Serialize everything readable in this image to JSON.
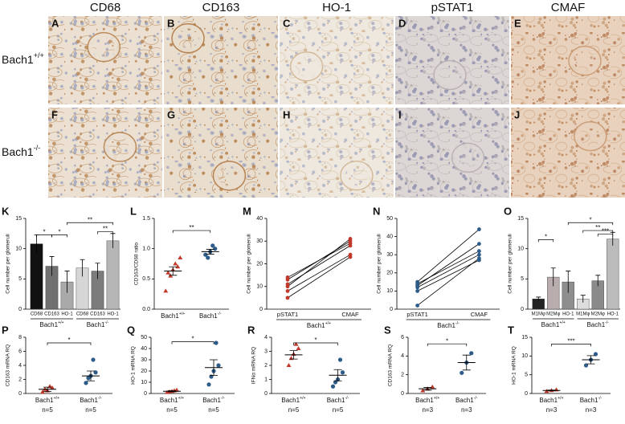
{
  "photos": {
    "columns": [
      "CD68",
      "CD163",
      "HO-1",
      "pSTAT1",
      "CMAF"
    ],
    "rows": [
      {
        "label": "Bach1",
        "sup": "+/+",
        "panels": [
          "A",
          "B",
          "C",
          "D",
          "E"
        ]
      },
      {
        "label": "Bach1",
        "sup": "-/-",
        "panels": [
          "F",
          "G",
          "H",
          "I",
          "J"
        ]
      }
    ]
  },
  "chart_data": [
    {
      "panel": "K",
      "type": "bar",
      "ylabel": "Cell number per glomeruli",
      "ylim": [
        0,
        15
      ],
      "yticks": [
        0,
        5,
        10,
        15
      ],
      "groups": [
        {
          "label": "Bach1",
          "sup": "+/+",
          "categories": [
            "CD68",
            "CD163",
            "HO-1"
          ],
          "values": [
            10.8,
            7.1,
            4.5
          ],
          "errors": [
            1.5,
            1.6,
            1.8
          ],
          "colors": [
            "#111111",
            "#707070",
            "#a9a9a9"
          ]
        },
        {
          "label": "Bach1",
          "sup": "-/-",
          "categories": [
            "CD68",
            "CD163",
            "HO-1"
          ],
          "values": [
            6.8,
            6.3,
            11.3
          ],
          "errors": [
            1.4,
            1.3,
            1.2
          ],
          "colors": [
            "#d6d6d6",
            "#7c7c7c",
            "#b6b6b6"
          ]
        }
      ],
      "significance": [
        "*",
        "*",
        "**",
        "**"
      ]
    },
    {
      "panel": "L",
      "type": "scatter",
      "ylabel": "CD163/CD68 ratio",
      "ylim": [
        0,
        1.5
      ],
      "yticks": [
        {
          "value": 0,
          "label": "0.0"
        },
        0.5,
        {
          "value": 1,
          "label": "1.0"
        },
        1.5
      ],
      "groups": [
        {
          "label": "Bach1",
          "sup": "+/+",
          "color": "#c0392b",
          "points": [
            0.65,
            0.6,
            0.7,
            0.55,
            0.75,
            0.3,
            0.85
          ],
          "mean": 0.63,
          "sem": 0.07
        },
        {
          "label": "Bach1",
          "sup": "-/-",
          "color": "#2e5c8a",
          "points": [
            0.95,
            0.9,
            1.0,
            0.85,
            1.05
          ],
          "mean": 0.95,
          "sem": 0.04
        }
      ],
      "significance": [
        "**"
      ]
    },
    {
      "panel": "M",
      "type": "paired",
      "ylabel": "Cell number per glomeruli",
      "ylim": [
        0,
        40
      ],
      "yticks": [
        0,
        10,
        20,
        30,
        40
      ],
      "categories": [
        "pSTAT1",
        "CMAF"
      ],
      "color": "#c0392b",
      "group": {
        "label": "Bach1",
        "sup": "+/+"
      },
      "pairs": [
        [
          13,
          30
        ],
        [
          14,
          29
        ],
        [
          10,
          31
        ],
        [
          8,
          24
        ],
        [
          11,
          28
        ],
        [
          5,
          23
        ]
      ]
    },
    {
      "panel": "N",
      "type": "paired",
      "ylabel": "Cell number per glomeruli",
      "ylim": [
        0,
        50
      ],
      "yticks": [
        0,
        10,
        20,
        30,
        40,
        50
      ],
      "categories": [
        "pSTAT1",
        "CMAF"
      ],
      "color": "#2e5c8a",
      "group": {
        "label": "Bach1",
        "sup": "-/-"
      },
      "pairs": [
        [
          14,
          32
        ],
        [
          13,
          36
        ],
        [
          12,
          30
        ],
        [
          15,
          44
        ],
        [
          2,
          28
        ],
        [
          10,
          27
        ]
      ]
    },
    {
      "panel": "O",
      "type": "bar",
      "ylabel": "Cell number per glomeruli",
      "ylim": [
        0,
        15
      ],
      "yticks": [
        0,
        5,
        10,
        15
      ],
      "groups": [
        {
          "label": "Bach1",
          "sup": "+/+",
          "categories": [
            "M1Mφ",
            "M2Mφ",
            "HO-1"
          ],
          "values": [
            1.7,
            5.3,
            4.5
          ],
          "errors": [
            0.3,
            1.5,
            1.8
          ],
          "colors": [
            "#222222",
            "#b9adad",
            "#8e8e8e"
          ]
        },
        {
          "label": "Bach1",
          "sup": "-/-",
          "categories": [
            "M1Mφ",
            "M2Mφ",
            "HO-1"
          ],
          "values": [
            1.7,
            4.7,
            11.6
          ],
          "errors": [
            0.6,
            0.9,
            1.1
          ],
          "colors": [
            "#dddddd",
            "#8a8a8a",
            "#bcbcbc"
          ]
        }
      ],
      "significance": [
        "*",
        "*",
        "**",
        "***"
      ]
    },
    {
      "panel": "P",
      "type": "scatter",
      "ylabel": "CD163 mRNA RQ",
      "ylim": [
        0,
        8
      ],
      "yticks": [
        0,
        2,
        4,
        6,
        8
      ],
      "groups": [
        {
          "label": "Bach1",
          "sup": "+/+",
          "n": "n=5",
          "color": "#c0392b",
          "points": [
            0.4,
            0.2,
            0.8,
            0.6,
            1.0
          ],
          "mean": 0.6,
          "sem": 0.3
        },
        {
          "label": "Bach1",
          "sup": "-/-",
          "n": "n=5",
          "color": "#2e5c8a",
          "points": [
            2.5,
            1.5,
            3.0,
            2.2,
            4.8
          ],
          "mean": 2.5,
          "sem": 0.7
        }
      ],
      "significance": [
        "*"
      ]
    },
    {
      "panel": "Q",
      "type": "scatter",
      "ylabel": "HO-1 mRNA RQ",
      "ylim": [
        0,
        50
      ],
      "yticks": [
        0,
        10,
        20,
        30,
        40,
        50
      ],
      "groups": [
        {
          "label": "Bach1",
          "sup": "+/+",
          "n": "n=5",
          "color": "#c0392b",
          "points": [
            2,
            1,
            3,
            1.5,
            2.5
          ],
          "mean": 2,
          "sem": 0.5
        },
        {
          "label": "Bach1",
          "sup": "-/-",
          "n": "n=5",
          "color": "#2e5c8a",
          "points": [
            20,
            8,
            25,
            15,
            45
          ],
          "mean": 23,
          "sem": 7
        }
      ],
      "significance": [
        "*"
      ]
    },
    {
      "panel": "R",
      "type": "scatter",
      "ylabel": "IFNα mRNA RQ",
      "ylim": [
        0,
        4
      ],
      "yticks": [
        0,
        1,
        2,
        3,
        4
      ],
      "groups": [
        {
          "label": "Bach1",
          "sup": "+/+",
          "n": "n=5",
          "color": "#c0392b",
          "points": [
            2.8,
            2.0,
            3.2,
            2.5,
            3.5
          ],
          "mean": 2.75,
          "sem": 0.3
        },
        {
          "label": "Bach1",
          "sup": "-/-",
          "n": "n=5",
          "color": "#2e5c8a",
          "points": [
            1.0,
            0.5,
            1.5,
            0.8,
            2.4
          ],
          "mean": 1.3,
          "sem": 0.4
        }
      ],
      "significance": [
        "*"
      ]
    },
    {
      "panel": "S",
      "type": "scatter",
      "ylabel": "CD163 mRNA RQ",
      "ylim": [
        0,
        6
      ],
      "yticks": [
        0,
        2,
        4,
        6
      ],
      "groups": [
        {
          "label": "Bach1",
          "sup": "+/+",
          "n": "n=3",
          "color": "#c0392b",
          "points": [
            0.5,
            0.3,
            0.7
          ],
          "mean": 0.5,
          "sem": 0.15
        },
        {
          "label": "Bach1",
          "sup": "-/-",
          "n": "n=3",
          "color": "#2e5c8a",
          "points": [
            3.3,
            2.2,
            4.3
          ],
          "mean": 3.3,
          "sem": 0.8
        }
      ],
      "significance": [
        "*"
      ]
    },
    {
      "panel": "T",
      "type": "scatter",
      "ylabel": "HO-1 mRNA RQ",
      "ylim": [
        0,
        15
      ],
      "yticks": [
        0,
        5,
        10,
        15
      ],
      "groups": [
        {
          "label": "Bach1",
          "sup": "+/+",
          "n": "n=3",
          "color": "#c0392b",
          "points": [
            0.8,
            0.6,
            1.0
          ],
          "mean": 0.8,
          "sem": 0.1
        },
        {
          "label": "Bach1",
          "sup": "-/-",
          "n": "n=3",
          "color": "#2e5c8a",
          "points": [
            9,
            7.5,
            10.5
          ],
          "mean": 9,
          "sem": 1.1
        }
      ],
      "significance": [
        "***"
      ]
    }
  ]
}
